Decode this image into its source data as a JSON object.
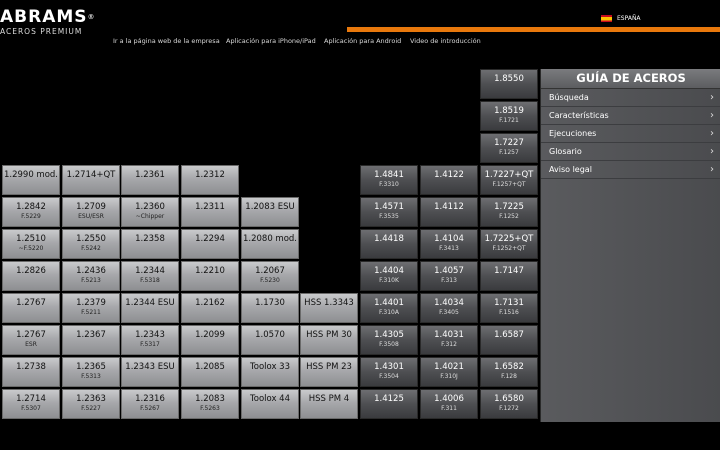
{
  "brand": {
    "name": "ABRAMS",
    "registered": "®",
    "tagline": "ACEROS PREMIUM"
  },
  "language": {
    "label": "ESPAÑA"
  },
  "nav": [
    "Ir a la página web de la empresa",
    "Aplicación para iPhone/iPad",
    "Aplicación para Android",
    "Video de introducción"
  ],
  "sidebar": {
    "title": "GUÍA DE ACEROS",
    "items": [
      "Búsqueda",
      "Características",
      "Ejecuciones",
      "Glosario",
      "Aviso legal"
    ]
  },
  "cells": [
    {
      "code": "1.8550",
      "sub": "",
      "style": "dark"
    },
    {
      "code": "1.8519",
      "sub": "F.1721",
      "style": "dark"
    },
    {
      "code": "1.7227",
      "sub": "F.1257",
      "style": "dark"
    },
    {
      "code": "1.2990 mod.",
      "sub": "",
      "style": "light"
    },
    {
      "code": "1.2714+QT",
      "sub": "",
      "style": "light"
    },
    {
      "code": "1.2361",
      "sub": "",
      "style": "light"
    },
    {
      "code": "1.2312",
      "sub": "",
      "style": "light"
    },
    {
      "code": "1.4841",
      "sub": "F.3310",
      "style": "dark"
    },
    {
      "code": "1.4122",
      "sub": "",
      "style": "dark"
    },
    {
      "code": "1.7227+QT",
      "sub": "F.1257+QT",
      "style": "dark"
    },
    {
      "code": "1.2842",
      "sub": "F.5229",
      "style": "light"
    },
    {
      "code": "1.2709",
      "sub": "ESU/ESR",
      "style": "light"
    },
    {
      "code": "1.2360",
      "sub": "~Chipper",
      "style": "light"
    },
    {
      "code": "1.2311",
      "sub": "",
      "style": "light"
    },
    {
      "code": "1.2083 ESU",
      "sub": "",
      "style": "light"
    },
    {
      "code": "1.4571",
      "sub": "F.3535",
      "style": "dark"
    },
    {
      "code": "1.4112",
      "sub": "",
      "style": "dark"
    },
    {
      "code": "1.7225",
      "sub": "F.1252",
      "style": "dark"
    },
    {
      "code": "1.2510",
      "sub": "~F.5220",
      "style": "light"
    },
    {
      "code": "1.2550",
      "sub": "F.5242",
      "style": "light"
    },
    {
      "code": "1.2358",
      "sub": "",
      "style": "light"
    },
    {
      "code": "1.2294",
      "sub": "",
      "style": "light"
    },
    {
      "code": "1.2080 mod.",
      "sub": "",
      "style": "light"
    },
    {
      "code": "1.4418",
      "sub": "",
      "style": "dark"
    },
    {
      "code": "1.4104",
      "sub": "F.3413",
      "style": "dark"
    },
    {
      "code": "1.7225+QT",
      "sub": "F.1252+QT",
      "style": "dark"
    },
    {
      "code": "1.2826",
      "sub": "",
      "style": "light"
    },
    {
      "code": "1.2436",
      "sub": "F.5213",
      "style": "light"
    },
    {
      "code": "1.2344",
      "sub": "F.5318",
      "style": "light"
    },
    {
      "code": "1.2210",
      "sub": "",
      "style": "light"
    },
    {
      "code": "1.2067",
      "sub": "F.5230",
      "style": "light"
    },
    {
      "code": "1.4404",
      "sub": "F.310K",
      "style": "dark"
    },
    {
      "code": "1.4057",
      "sub": "F.313",
      "style": "dark"
    },
    {
      "code": "1.7147",
      "sub": "",
      "style": "dark"
    },
    {
      "code": "1.2767",
      "sub": "",
      "style": "light"
    },
    {
      "code": "1.2379",
      "sub": "F.5211",
      "style": "light"
    },
    {
      "code": "1.2344 ESU",
      "sub": "",
      "style": "light"
    },
    {
      "code": "1.2162",
      "sub": "",
      "style": "light"
    },
    {
      "code": "1.1730",
      "sub": "",
      "style": "light"
    },
    {
      "code": "HSS 1.3343",
      "sub": "",
      "style": "light"
    },
    {
      "code": "1.4401",
      "sub": "F.310A",
      "style": "dark"
    },
    {
      "code": "1.4034",
      "sub": "F.3405",
      "style": "dark"
    },
    {
      "code": "1.7131",
      "sub": "F.1516",
      "style": "dark"
    },
    {
      "code": "1.2767",
      "sub": "ESR",
      "style": "light"
    },
    {
      "code": "1.2367",
      "sub": "",
      "style": "light"
    },
    {
      "code": "1.2343",
      "sub": "F.5317",
      "style": "light"
    },
    {
      "code": "1.2099",
      "sub": "",
      "style": "light"
    },
    {
      "code": "1.0570",
      "sub": "",
      "style": "light"
    },
    {
      "code": "HSS PM 30",
      "sub": "",
      "style": "light"
    },
    {
      "code": "1.4305",
      "sub": "F.3508",
      "style": "dark"
    },
    {
      "code": "1.4031",
      "sub": "F.312",
      "style": "dark"
    },
    {
      "code": "1.6587",
      "sub": "",
      "style": "dark"
    },
    {
      "code": "1.2738",
      "sub": "",
      "style": "light"
    },
    {
      "code": "1.2365",
      "sub": "F.5313",
      "style": "light"
    },
    {
      "code": "1.2343 ESU",
      "sub": "",
      "style": "light"
    },
    {
      "code": "1.2085",
      "sub": "",
      "style": "light"
    },
    {
      "code": "Toolox 33",
      "sub": "",
      "style": "light"
    },
    {
      "code": "HSS PM 23",
      "sub": "",
      "style": "light"
    },
    {
      "code": "1.4301",
      "sub": "F.3504",
      "style": "dark"
    },
    {
      "code": "1.4021",
      "sub": "F.310J",
      "style": "dark"
    },
    {
      "code": "1.6582",
      "sub": "F.128",
      "style": "dark"
    },
    {
      "code": "1.2714",
      "sub": "F.5307",
      "style": "light"
    },
    {
      "code": "1.2363",
      "sub": "F.5227",
      "style": "light"
    },
    {
      "code": "1.2316",
      "sub": "F.5267",
      "style": "light"
    },
    {
      "code": "1.2083",
      "sub": "F.5263",
      "style": "light"
    },
    {
      "code": "Toolox 44",
      "sub": "",
      "style": "light"
    },
    {
      "code": "HSS PM 4",
      "sub": "",
      "style": "light"
    },
    {
      "code": "1.4125",
      "sub": "",
      "style": "dark"
    },
    {
      "code": "1.4006",
      "sub": "F.311",
      "style": "dark"
    },
    {
      "code": "1.6580",
      "sub": "F.1272",
      "style": "dark"
    }
  ]
}
